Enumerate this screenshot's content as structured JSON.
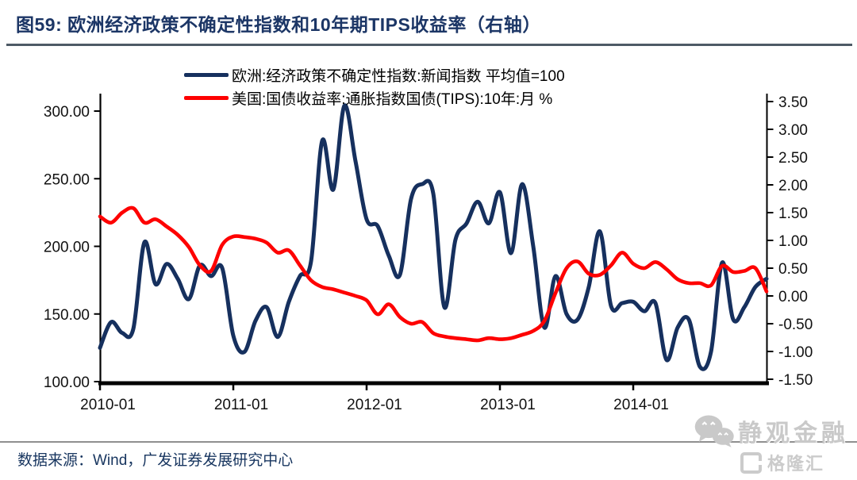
{
  "header": {
    "title": "图59:  欧洲经济政策不确定性指数和10年期TIPS收益率（右轴）"
  },
  "footer": {
    "source": "数据来源：Wind，广发证券发展研究中心"
  },
  "watermark": {
    "wechat_name": "静观金融",
    "site_name": "格隆汇"
  },
  "chart_data": {
    "type": "line",
    "title": "欧洲经济政策不确定性指数和10年期TIPS收益率",
    "grid": false,
    "legend_position": "top-center",
    "x": [
      "2010-01",
      "2010-02",
      "2010-03",
      "2010-04",
      "2010-05",
      "2010-06",
      "2010-07",
      "2010-08",
      "2010-09",
      "2010-10",
      "2010-11",
      "2010-12",
      "2011-01",
      "2011-02",
      "2011-03",
      "2011-04",
      "2011-05",
      "2011-06",
      "2011-07",
      "2011-08",
      "2011-09",
      "2011-10",
      "2011-11",
      "2011-12",
      "2012-01",
      "2012-02",
      "2012-03",
      "2012-04",
      "2012-05",
      "2012-06",
      "2012-07",
      "2012-08",
      "2012-09",
      "2012-10",
      "2012-11",
      "2012-12",
      "2013-01",
      "2013-02",
      "2013-03",
      "2013-04",
      "2013-05",
      "2013-06",
      "2013-07",
      "2013-08",
      "2013-09",
      "2013-10",
      "2013-11",
      "2013-12",
      "2014-01",
      "2014-02",
      "2014-03",
      "2014-04",
      "2014-05",
      "2014-06",
      "2014-07",
      "2014-08",
      "2014-09",
      "2014-10",
      "2014-11",
      "2014-12",
      "2015-01"
    ],
    "series": [
      {
        "name": "欧洲:经济政策不确定性指数:新闻指数 平均值=100",
        "axis": "left",
        "color": "#16305e",
        "values": [
          125,
          144,
          136,
          139,
          203,
          172,
          187,
          176,
          161,
          186,
          178,
          184,
          134,
          122,
          145,
          155,
          133,
          159,
          178,
          189,
          278,
          242,
          304,
          263,
          220,
          215,
          193,
          179,
          235,
          246,
          239,
          155,
          205,
          217,
          233,
          217,
          240,
          195,
          246,
          200,
          140,
          178,
          150,
          146,
          170,
          211,
          156,
          158,
          159,
          152,
          158,
          116,
          140,
          146,
          111,
          122,
          188,
          146,
          155,
          170,
          176
        ]
      },
      {
        "name": "美国:国债收益率:通胀指数国债(TIPS):10年:月 %",
        "axis": "right",
        "color": "#fe0000",
        "values": [
          1.43,
          1.32,
          1.5,
          1.58,
          1.32,
          1.38,
          1.25,
          1.1,
          0.88,
          0.55,
          0.45,
          0.92,
          1.07,
          1.06,
          1.03,
          0.96,
          0.78,
          0.82,
          0.55,
          0.28,
          0.16,
          0.12,
          0.06,
          0.0,
          -0.08,
          -0.33,
          -0.15,
          -0.38,
          -0.5,
          -0.47,
          -0.67,
          -0.73,
          -0.76,
          -0.78,
          -0.8,
          -0.76,
          -0.78,
          -0.76,
          -0.7,
          -0.63,
          -0.45,
          0.05,
          0.5,
          0.62,
          0.4,
          0.38,
          0.55,
          0.78,
          0.58,
          0.5,
          0.61,
          0.48,
          0.3,
          0.23,
          0.23,
          0.19,
          0.54,
          0.43,
          0.45,
          0.5,
          0.08
        ]
      }
    ],
    "left_axis": {
      "ticks": [
        "300.00",
        "250.00",
        "200.00",
        "150.00",
        "100.00"
      ],
      "tick_values": [
        300,
        250,
        200,
        150,
        100
      ],
      "min": 100,
      "max": 300
    },
    "right_axis": {
      "ticks": [
        "3.50",
        "3.00",
        "2.50",
        "2.00",
        "1.50",
        "1.00",
        "0.50",
        "0.00",
        "-0.50",
        "-1.00",
        "-1.50"
      ],
      "tick_values": [
        3.5,
        3.0,
        2.5,
        2.0,
        1.5,
        1.0,
        0.5,
        0.0,
        -0.5,
        -1.0,
        -1.5
      ],
      "min": -1.5,
      "max": 3.5
    },
    "x_axis": {
      "tick_labels": [
        "2010-01",
        "2011-01",
        "2012-01",
        "2013-01",
        "2014-01"
      ],
      "tick_positions": [
        0,
        12,
        24,
        36,
        48
      ]
    }
  }
}
